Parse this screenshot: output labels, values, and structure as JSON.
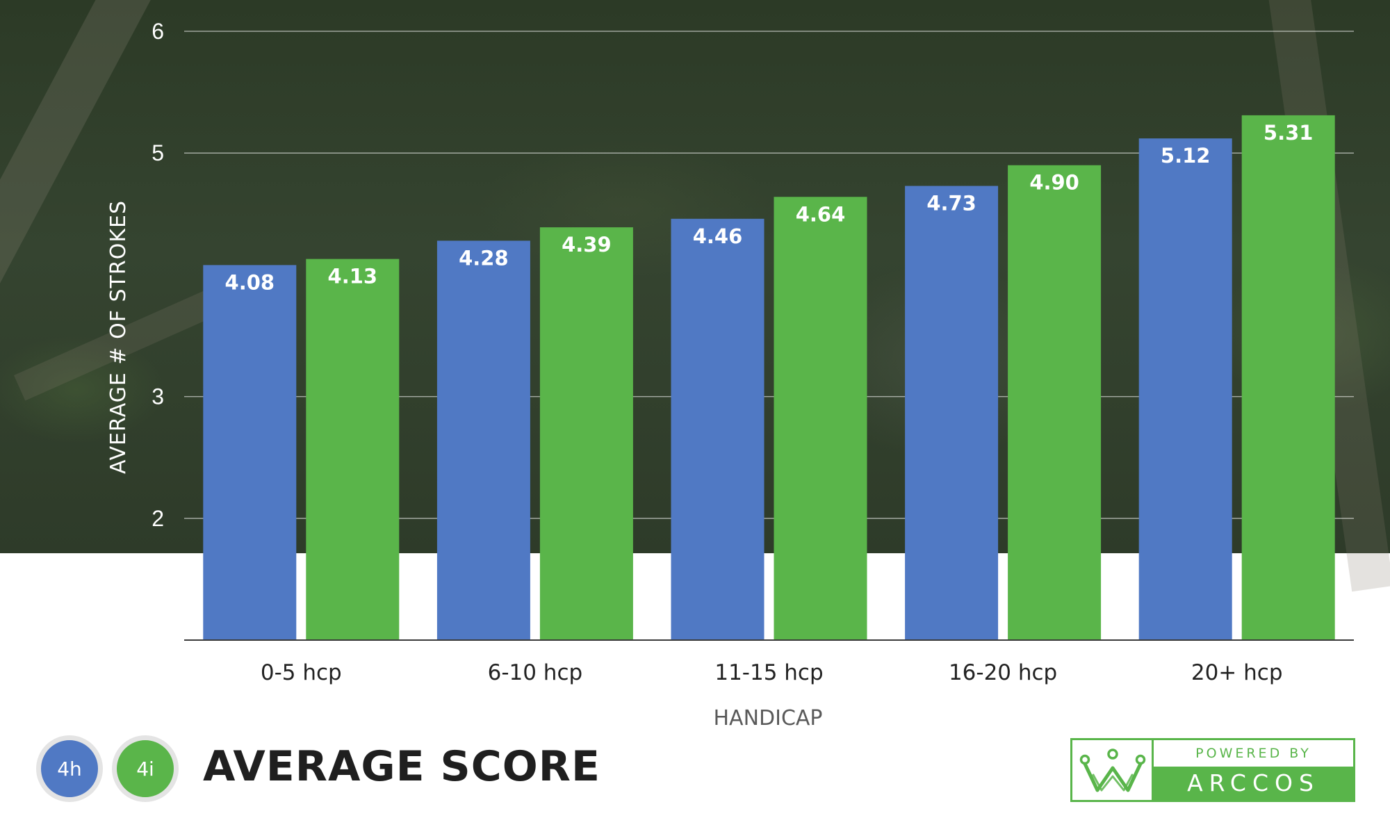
{
  "colors": {
    "series_4h": "#5079c4",
    "series_4i": "#5ab54a",
    "photo_overlay": "#2f3c2a",
    "brand_green": "#59b54a"
  },
  "chart_data": {
    "type": "bar",
    "title": "AVERAGE SCORE",
    "xlabel": "HANDICAP",
    "ylabel": "AVERAGE # OF STROKES",
    "categories": [
      "0-5 hcp",
      "6-10 hcp",
      "11-15 hcp",
      "16-20 hcp",
      "20+ hcp"
    ],
    "series": [
      {
        "name": "4h",
        "values": [
          4.08,
          4.28,
          4.46,
          4.73,
          5.12
        ],
        "labels": [
          "4.08",
          "4.28",
          "4.46",
          "4.73",
          "5.12"
        ]
      },
      {
        "name": "4i",
        "values": [
          4.13,
          4.39,
          4.64,
          4.9,
          5.31
        ],
        "labels": [
          "4.13",
          "4.39",
          "4.64",
          "4.90",
          "5.31"
        ]
      }
    ],
    "yticks": [
      2,
      3,
      5,
      6
    ],
    "ytick_labels": [
      "2",
      "3",
      "5",
      "6"
    ],
    "ylim": [
      1,
      6
    ],
    "grid": true,
    "legend": "bottom-left"
  },
  "legend": {
    "h_label": "4h",
    "i_label": "4i"
  },
  "footer": {
    "title": "AVERAGE SCORE"
  },
  "logo": {
    "powered_by": "POWERED BY",
    "brand": "ARCCOS",
    "icon": "crown-icon"
  }
}
